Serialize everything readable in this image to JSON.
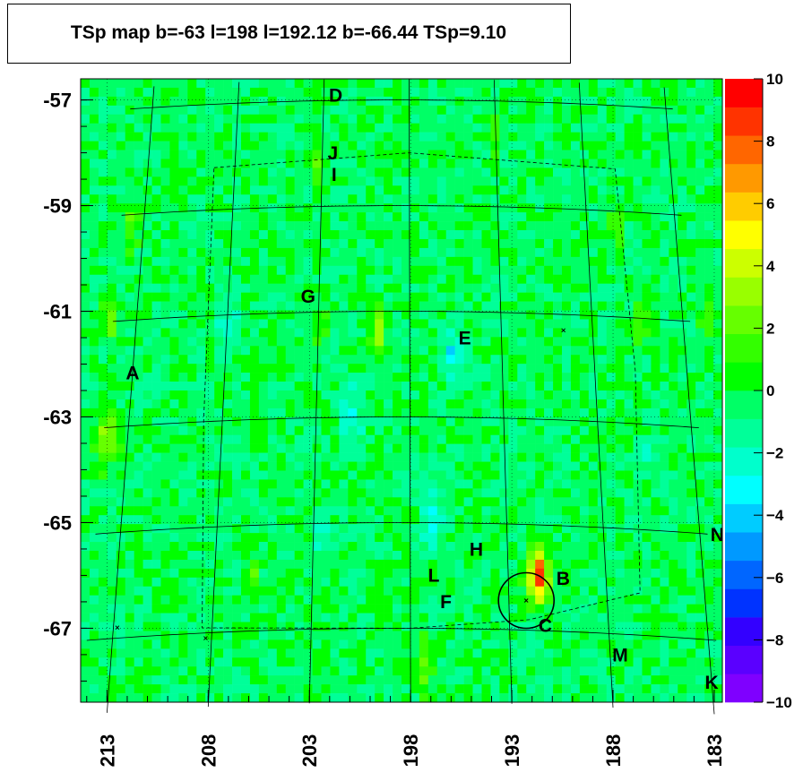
{
  "chart_data": {
    "type": "heatmap",
    "title": "TSp map b=-63 l=198 l=192.12 b=-66.44 TSp=9.10",
    "xlabel": "",
    "ylabel": "",
    "x_ticks": [
      "213",
      "208",
      "203",
      "198",
      "193",
      "188",
      "183"
    ],
    "x_tick_values": [
      213,
      208,
      203,
      198,
      193,
      188,
      183
    ],
    "y_ticks": [
      "-57",
      "-59",
      "-61",
      "-63",
      "-65",
      "-67"
    ],
    "y_tick_values": [
      -57,
      -59,
      -61,
      -63,
      -65,
      -67
    ],
    "xlim": [
      214.3,
      182.6
    ],
    "ylim": [
      -68.4,
      -56.6
    ],
    "colorbar": {
      "range": [
        -10,
        10
      ],
      "tick_labels": [
        "10",
        "8",
        "6",
        "4",
        "2",
        "0",
        "−2",
        "−4",
        "−6",
        "−8",
        "−10"
      ],
      "tick_values": [
        10,
        8,
        6,
        4,
        2,
        0,
        -2,
        -4,
        -6,
        -8,
        -10
      ],
      "colors": [
        "#7f00ff",
        "#5a00ff",
        "#3300ff",
        "#0033ff",
        "#0066ff",
        "#0099ff",
        "#00ccff",
        "#00ffff",
        "#00ffcc",
        "#00ff99",
        "#00ff66",
        "#00ff00",
        "#33ff00",
        "#66ff00",
        "#99ff00",
        "#ccff00",
        "#ffff00",
        "#ffcc00",
        "#ff9900",
        "#ff6600",
        "#ff3300",
        "#ff0000"
      ]
    },
    "background_level": -0.4,
    "hotspots": [
      {
        "l": 191.7,
        "b": -66.0,
        "value": 9.1,
        "width": 0.35
      },
      {
        "l": 213.0,
        "b": -63.4,
        "value": 3.5,
        "width": 0.4
      },
      {
        "l": 211.8,
        "b": -59.4,
        "value": 2.5,
        "width": 0.3
      },
      {
        "l": 212.8,
        "b": -61.1,
        "value": 3.0,
        "width": 0.25
      },
      {
        "l": 209.4,
        "b": -62.0,
        "value": 3.0,
        "width": 0.2
      },
      {
        "l": 202.8,
        "b": -58.3,
        "value": 3.0,
        "width": 0.2
      },
      {
        "l": 199.6,
        "b": -61.4,
        "value": 3.5,
        "width": 0.3
      },
      {
        "l": 186.7,
        "b": -61.2,
        "value": 2.5,
        "width": 0.3
      },
      {
        "l": 183.4,
        "b": -61.1,
        "value": 2.5,
        "width": 0.3
      },
      {
        "l": 187.8,
        "b": -59.4,
        "value": 2.5,
        "width": 0.25
      },
      {
        "l": 193.8,
        "b": -57.6,
        "value": 2.5,
        "width": 0.25
      },
      {
        "l": 205.9,
        "b": -66.0,
        "value": 2.5,
        "width": 0.25
      },
      {
        "l": 197.3,
        "b": -67.7,
        "value": 3.0,
        "width": 0.3
      },
      {
        "l": 202.5,
        "b": -61.2,
        "value": 2.0,
        "width": 0.3
      }
    ],
    "coldspots": [
      {
        "l": 196.0,
        "b": -61.8,
        "value": -2.5,
        "width": 0.35
      },
      {
        "l": 197.0,
        "b": -65.0,
        "value": -2.5,
        "width": 0.4
      },
      {
        "l": 202.3,
        "b": -65.2,
        "value": -2.0,
        "width": 0.3
      },
      {
        "l": 201.0,
        "b": -63.0,
        "value": -1.8,
        "width": 0.4
      },
      {
        "l": 207.0,
        "b": -61.2,
        "value": -1.5,
        "width": 0.4
      },
      {
        "l": 186.3,
        "b": -63.7,
        "value": -1.5,
        "width": 0.3
      },
      {
        "l": 211.5,
        "b": -62.2,
        "value": -1.5,
        "width": 0.3
      }
    ],
    "graticule_b": [
      -57,
      -59,
      -61,
      -63,
      -65,
      -67
    ],
    "graticule_l": [
      213,
      208,
      203,
      198,
      193,
      188,
      183
    ],
    "sources": [
      {
        "label": "A",
        "l": 213.0,
        "b": -62.0
      },
      {
        "label": "B",
        "l": 190.2,
        "b": -66.0
      },
      {
        "label": "C",
        "l": 191.2,
        "b": -66.9
      },
      {
        "label": "D",
        "l": 202.3,
        "b": -56.9
      },
      {
        "label": "E",
        "l": 195.0,
        "b": -61.5
      },
      {
        "label": "F",
        "l": 196.2,
        "b": -66.5
      },
      {
        "label": "G",
        "l": 203.6,
        "b": -60.7
      },
      {
        "label": "H",
        "l": 194.6,
        "b": -65.5
      },
      {
        "label": "I",
        "l": 202.3,
        "b": -58.4
      },
      {
        "label": "J",
        "l": 202.4,
        "b": -58.0
      },
      {
        "label": "K",
        "l": 183.0,
        "b": -67.8
      },
      {
        "label": "L",
        "l": 196.8,
        "b": -66.0
      },
      {
        "label": "M",
        "l": 187.5,
        "b": -67.4
      },
      {
        "label": "N",
        "l": 182.1,
        "b": -65.0
      }
    ],
    "fit_position": {
      "l": 192.12,
      "b": -66.44
    },
    "ts_peak": 9.1,
    "small_markers": [
      {
        "l": 189.6,
        "b": -61.3
      },
      {
        "l": 212.8,
        "b": -66.8
      },
      {
        "l": 208.3,
        "b": -67.1
      }
    ]
  }
}
